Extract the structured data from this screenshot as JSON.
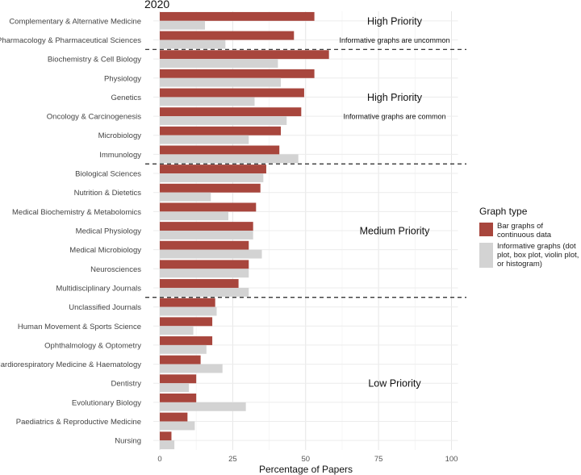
{
  "chart_data": {
    "type": "bar",
    "orientation": "horizontal",
    "title": "2020",
    "xlabel": "Percentage of Papers",
    "ylabel": "",
    "xlim": [
      0,
      100
    ],
    "xticks": [
      "0",
      "25",
      "50",
      "75",
      "100"
    ],
    "grid": true,
    "categories": [
      "Complementary & Alternative Medicine",
      "Pharmacology & Pharmaceutical Sciences",
      "Biochemistry & Cell Biology",
      "Physiology",
      "Genetics",
      "Oncology & Carcinogenesis",
      "Microbiology",
      "Immunology",
      "Biological Sciences",
      "Nutrition & Dietetics",
      "Medical Biochemistry & Metabolomics",
      "Medical Physiology",
      "Medical Microbiology",
      "Neurosciences",
      "Multidisciplinary Journals",
      "Unclassified Journals",
      "Human Movement & Sports Science",
      "Ophthalmology & Optometry",
      "Cardiorespiratory Medicine & Haematology",
      "Dentistry",
      "Evolutionary Biology",
      "Paediatrics & Reproductive Medicine",
      "Nursing"
    ],
    "series": [
      {
        "name": "Bar graphs of continuous data",
        "color": "#a8463d",
        "values": [
          53,
          46,
          58,
          53,
          49.5,
          48.5,
          41.5,
          41,
          36.5,
          34.5,
          33,
          32,
          30.5,
          30.5,
          27,
          19,
          18,
          18,
          14,
          12.5,
          12.5,
          9.5,
          4
        ]
      },
      {
        "name": "Informative graphs (dot plot, box plot, violin plot, or histogram)",
        "color": "#d3d3d3",
        "values": [
          15.5,
          22.5,
          40.5,
          41.5,
          32.5,
          43.5,
          30.5,
          47.5,
          35.5,
          17.5,
          23.5,
          32,
          35,
          30.5,
          30.5,
          19.5,
          11.5,
          16,
          21.5,
          10,
          29.5,
          12,
          5
        ]
      }
    ],
    "legend": {
      "title": "Graph type",
      "position": "right",
      "items": [
        "Bar graphs of continuous data",
        "Informative graphs (dot plot, box plot, violin plot, or histogram)"
      ]
    },
    "dividers_after_index": [
      1,
      7,
      14
    ],
    "annotations": [
      {
        "text": "High Priority",
        "style": "heading",
        "at_category": 0,
        "x": 80.5
      },
      {
        "text": "Informative graphs are uncommon",
        "style": "note",
        "at_category": 1,
        "x": 80.5
      },
      {
        "text": "High Priority",
        "style": "heading",
        "at_category": 4,
        "x": 80.5
      },
      {
        "text": "Informative graphs are common",
        "style": "note",
        "at_category": 5,
        "x": 80.5
      },
      {
        "text": "Medium Priority",
        "style": "heading",
        "at_category": 11,
        "x": 80.5
      },
      {
        "text": "Low Priority",
        "style": "heading",
        "at_category": 19,
        "x": 80.5
      }
    ]
  }
}
